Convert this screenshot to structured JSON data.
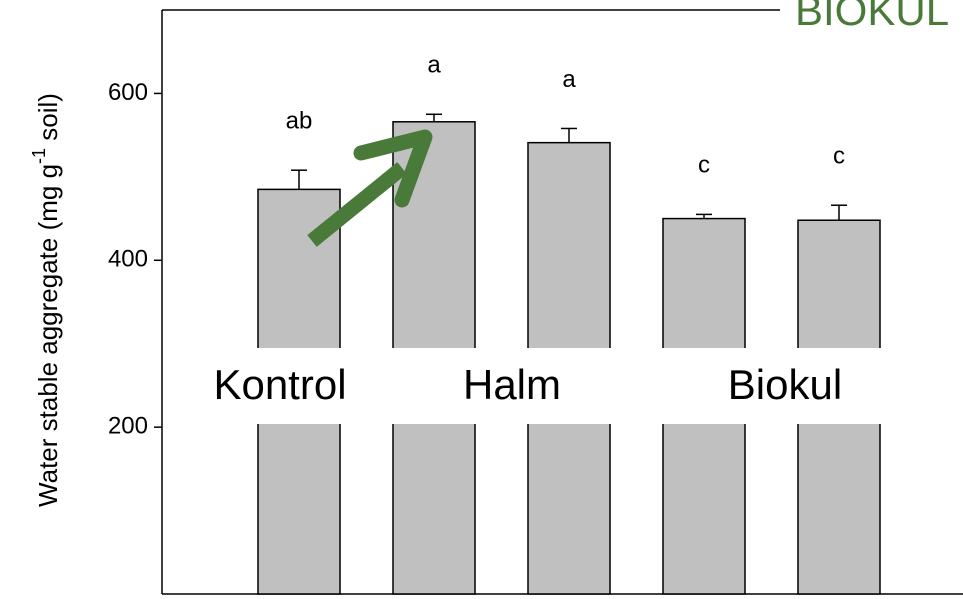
{
  "chart_data": {
    "type": "bar",
    "title": "BIOKUL",
    "ylabel": {
      "text": "Water stable aggregate (mg g",
      "sup": "-1",
      "end": " soil)"
    },
    "values": [
      485,
      566,
      541,
      450,
      448
    ],
    "errors": [
      23,
      9,
      17,
      5,
      18
    ],
    "letters": [
      "ab",
      "a",
      "a",
      "c",
      "c"
    ],
    "groups": [
      "Kontrol",
      "Halm",
      "Biokul"
    ],
    "color": "#c0c0c0",
    "ylim": [
      0,
      700
    ],
    "yticks": [
      200,
      400,
      600
    ]
  }
}
